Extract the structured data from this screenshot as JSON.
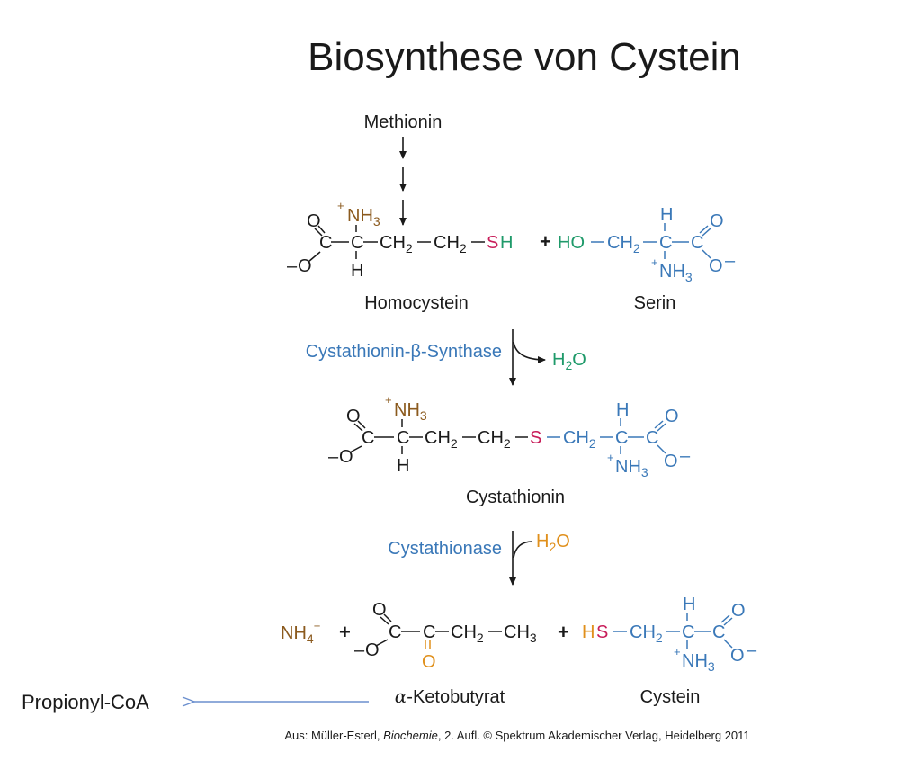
{
  "title": "Biosynthese von Cystein",
  "colors": {
    "black": "#1a1a1a",
    "brown": "#8b5a1e",
    "blue": "#3a78b8",
    "green": "#1f9a6a",
    "magenta": "#c81e5a",
    "orange": "#e0901c",
    "arrow_blue": "#6b8fce"
  },
  "methionine": {
    "label": "Methionin"
  },
  "row1": {
    "homocystein": {
      "O_top": "O",
      "C_carboxyl": "C",
      "O_bottom": "O",
      "charge_minus": "–",
      "NH3": "NH",
      "NH3_sub": "3",
      "NH3_plus": "+",
      "C_alpha": "C",
      "H": "H",
      "CH2a": "CH",
      "CH2a_sub": "2",
      "CH2b": "CH",
      "CH2b_sub": "2",
      "S": "S",
      "SH_H": "H",
      "name": "Homocystein"
    },
    "plus": "+",
    "serin": {
      "HO": "HO",
      "CH2": "CH",
      "CH2_sub": "2",
      "H": "H",
      "C_alpha": "C",
      "NH3": "NH",
      "NH3_sub": "3",
      "NH3_plus": "+",
      "C_carboxyl": "C",
      "O_top": "O",
      "O_bottom": "O",
      "charge_minus": "–",
      "name": "Serin"
    }
  },
  "step1": {
    "enzyme": "Cystathionin-β-Synthase",
    "byproduct": "H",
    "byproduct_sub": "2",
    "byproduct_O": "O"
  },
  "row2": {
    "O_top": "O",
    "C_carboxyl": "C",
    "O_bottom": "O",
    "charge_minus": "–",
    "NH3": "NH",
    "NH3_sub": "3",
    "NH3_plus": "+",
    "C_alpha": "C",
    "H": "H",
    "CH2a": "CH",
    "CH2a_sub": "2",
    "CH2b": "CH",
    "CH2b_sub": "2",
    "S": "S",
    "CH2c": "CH",
    "CH2c_sub": "2",
    "H_right": "H",
    "C_alpha_right": "C",
    "NH3_right": "NH",
    "NH3_right_sub": "3",
    "NH3_right_plus": "+",
    "C_carboxyl_right": "C",
    "O_top_right": "O",
    "O_bottom_right": "O",
    "charge_minus_right": "–",
    "name": "Cystathionin"
  },
  "step2": {
    "enzyme": "Cystathionase",
    "reactant": "H",
    "reactant_sub": "2",
    "reactant_O": "O"
  },
  "row3": {
    "ammonium": "NH",
    "ammonium_sub": "4",
    "ammonium_plus": "+",
    "plus1": "+",
    "ketobutyrat": {
      "O_top": "O",
      "C_carboxyl": "C",
      "O_bottom": "O",
      "charge_minus": "–",
      "C_keto": "C",
      "O_keto": "O",
      "CH2": "CH",
      "CH2_sub": "2",
      "CH3": "CH",
      "CH3_sub": "3",
      "name_greek": "α",
      "name_rest": "-Ketobutyrat"
    },
    "plus2": "+",
    "cystein": {
      "H": "H",
      "S": "S",
      "CH2": "CH",
      "CH2_sub": "2",
      "H_top": "H",
      "C_alpha": "C",
      "NH3": "NH",
      "NH3_sub": "3",
      "NH3_plus": "+",
      "C_carboxyl": "C",
      "O_top": "O",
      "O_bottom": "O",
      "charge_minus": "–",
      "name": "Cystein"
    }
  },
  "propionyl": "Propionyl-CoA",
  "citation": {
    "prefix": "Aus: Müller-Esterl, ",
    "book": "Biochemie",
    "suffix": ", 2. Aufl. © Spektrum Akademischer Verlag, Heidelberg 2011"
  }
}
